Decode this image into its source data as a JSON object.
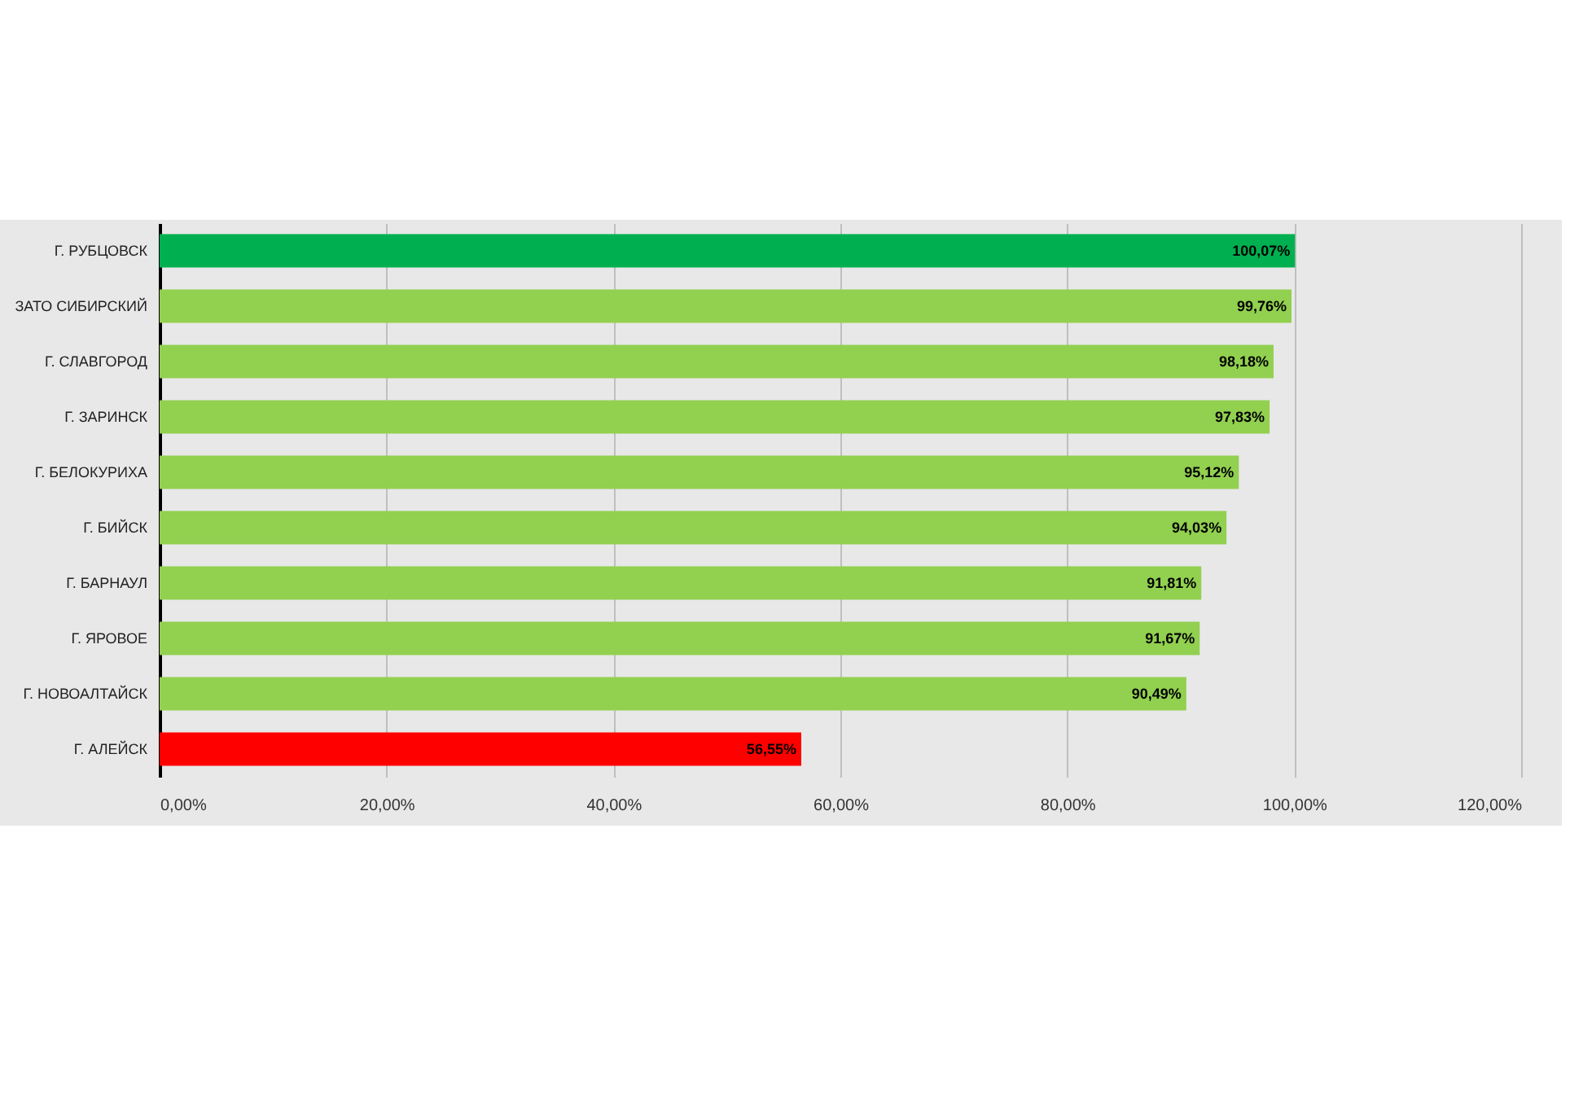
{
  "chart_data": {
    "type": "bar",
    "orientation": "horizontal",
    "categories": [
      "Г. РУБЦОВСК",
      "ЗАТО СИБИРСКИЙ",
      "Г. СЛАВГОРОД",
      "Г. ЗАРИНСК",
      "Г. БЕЛОКУРИХА",
      "Г. БИЙСК",
      "Г. БАРНАУЛ",
      "Г. ЯРОВОЕ",
      "Г. НОВОАЛТАЙСК",
      "Г. АЛЕЙСК"
    ],
    "values": [
      100.07,
      99.76,
      98.18,
      97.83,
      95.12,
      94.03,
      91.81,
      91.67,
      90.49,
      56.55
    ],
    "colors": [
      "#00b050",
      "#92d050",
      "#92d050",
      "#92d050",
      "#92d050",
      "#92d050",
      "#92d050",
      "#92d050",
      "#92d050",
      "#ff0000"
    ],
    "value_labels": [
      "100,07%",
      "99,76%",
      "98,18%",
      "97,83%",
      "95,12%",
      "94,03%",
      "91,81%",
      "91,67%",
      "90,49%",
      "56,55%"
    ],
    "xlim": [
      0,
      120
    ],
    "xticks": [
      {
        "value": 0,
        "label": "0,00%"
      },
      {
        "value": 20,
        "label": "20,00%"
      },
      {
        "value": 40,
        "label": "40,00%"
      },
      {
        "value": 60,
        "label": "60,00%"
      },
      {
        "value": 80,
        "label": "80,00%"
      },
      {
        "value": 100,
        "label": "100,00%"
      },
      {
        "value": 120,
        "label": "120,00%"
      }
    ],
    "grid": "x"
  }
}
